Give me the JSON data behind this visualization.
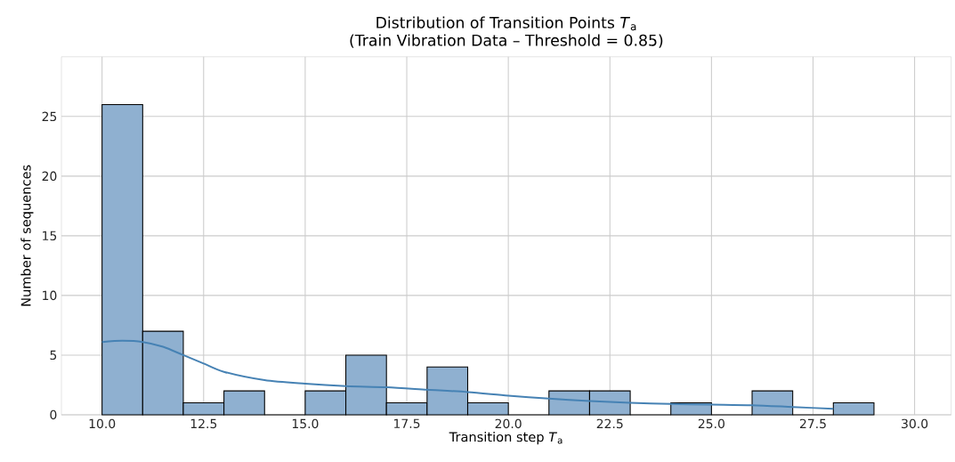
{
  "chart_data": {
    "type": "histogram",
    "title": "Distribution of Transition Points *T*$_{a}$",
    "subtitle": "(Train Vibration Data – Threshold = 0.85)",
    "xlabel": "Transition step *T*$_{a}$",
    "ylabel": "Number of sequences",
    "bins": [
      10,
      11,
      12,
      13,
      14,
      15,
      16,
      17,
      18,
      19,
      20,
      21,
      22,
      23,
      24,
      25,
      26,
      27,
      28,
      29
    ],
    "values": [
      26,
      7,
      1,
      2,
      0,
      2,
      5,
      1,
      4,
      1,
      0,
      2,
      2,
      0,
      1,
      0,
      2,
      0,
      1
    ],
    "color": "#8fb0d0",
    "series": [
      {
        "type": "line",
        "color": "#4682b4",
        "x": [
          10,
          10.5,
          11,
          11.5,
          12,
          12.5,
          13,
          14,
          15,
          16,
          17,
          18,
          19,
          20,
          21,
          22,
          23,
          24,
          25,
          26,
          27,
          28
        ],
        "values": [
          6.1,
          6.2,
          6.1,
          5.7,
          5.0,
          4.3,
          3.6,
          2.9,
          2.6,
          2.4,
          2.3,
          2.1,
          1.9,
          1.6,
          1.35,
          1.15,
          1.0,
          0.9,
          0.85,
          0.8,
          0.65,
          0.5
        ]
      }
    ],
    "xlim": [
      9.0,
      30.9
    ],
    "ylim": [
      0,
      30
    ],
    "xticks": [
      {
        "value": 10,
        "label": "10.0"
      },
      {
        "value": 12.5,
        "label": "12.5"
      },
      {
        "value": 15,
        "label": "15.0"
      },
      {
        "value": 17.5,
        "label": "17.5"
      },
      {
        "value": 20,
        "label": "20.0"
      },
      {
        "value": 22.5,
        "label": "22.5"
      },
      {
        "value": 25,
        "label": "25.0"
      },
      {
        "value": 27.5,
        "label": "27.5"
      },
      {
        "value": 30,
        "label": "30.0"
      }
    ],
    "yticks": [
      0,
      5,
      10,
      15,
      20,
      25
    ],
    "grid": true,
    "marker": "none",
    "line_style": "solid"
  }
}
